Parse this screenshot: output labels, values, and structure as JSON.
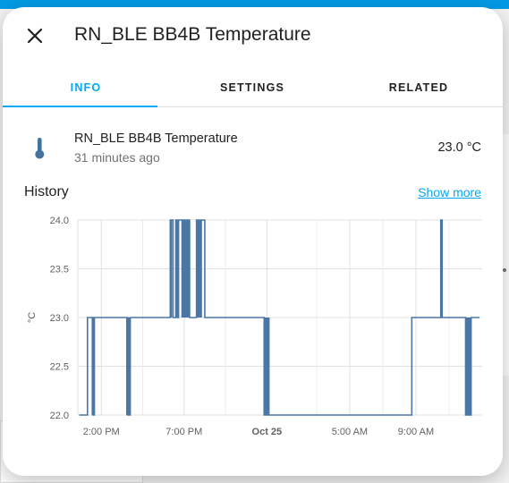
{
  "dialog": {
    "title": "RN_BLE BB4B Temperature",
    "close_icon": "close-icon"
  },
  "tabs": [
    {
      "label": "INFO",
      "active": true
    },
    {
      "label": "SETTINGS",
      "active": false
    },
    {
      "label": "RELATED",
      "active": false
    }
  ],
  "entity": {
    "icon": "thermometer-icon",
    "name": "RN_BLE BB4B Temperature",
    "last_changed": "31 minutes ago",
    "state": "23.0 °C"
  },
  "history": {
    "title": "History",
    "show_more_label": "Show more"
  },
  "colors": {
    "accent": "#03a9f4",
    "series": "#4a77a5",
    "app_header": "#039be5"
  },
  "chart_data": {
    "type": "line",
    "step": true,
    "ylabel": "°C",
    "ylim": [
      22.0,
      24.0
    ],
    "yticks": [
      "24.0",
      "23.5",
      "23.0",
      "22.5",
      "22.0"
    ],
    "xticks": [
      {
        "label": "2:00 PM",
        "bold": false
      },
      {
        "label": "7:00 PM",
        "bold": false
      },
      {
        "label": "Oct 25",
        "bold": true
      },
      {
        "label": "5:00 AM",
        "bold": false
      },
      {
        "label": "9:00 AM",
        "bold": false
      }
    ],
    "grid": true,
    "series": [
      {
        "name": "",
        "x": [
          "Oct 24 12:40",
          "Oct 24 13:10",
          "Oct 24 13:30",
          "Oct 24 13:35",
          "Oct 24 15:35",
          "Oct 24 15:45",
          "Oct 24 18:10",
          "Oct 24 18:20",
          "Oct 24 18:30",
          "Oct 24 18:35",
          "Oct 24 18:40",
          "Oct 24 19:20",
          "Oct 24 19:45",
          "Oct 24 20:15",
          "Oct 24 23:50",
          "Oct 25 00:10",
          "Oct 25 08:45",
          "Oct 25 09:10",
          "Oct 25 10:30",
          "Oct 25 10:35",
          "Oct 25 12:00",
          "Oct 25 12:20",
          "Oct 25 12:50"
        ],
        "values": [
          22.0,
          23.0,
          22.0,
          23.0,
          22.0,
          23.0,
          24.0,
          23.0,
          24.0,
          23.0,
          24.0,
          23.0,
          24.0,
          23.0,
          22.0,
          22.0,
          23.0,
          23.0,
          24.0,
          23.0,
          22.0,
          23.0,
          23.0
        ]
      }
    ]
  }
}
